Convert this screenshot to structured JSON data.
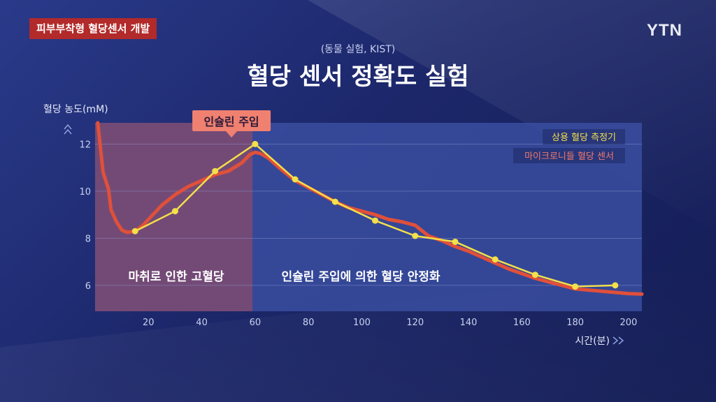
{
  "header": {
    "tag": "피부부착형 혈당센서 개발",
    "logo": "YTN",
    "subtitle": "(동물 실험, KIST)",
    "title": "혈당 센서 정확도 실험"
  },
  "colors": {
    "yellow": "#f3e04a",
    "red": "#e0503a",
    "shade_pink": "#7a4a72",
    "plot_bg": "#3a4ea0"
  },
  "chart_data": {
    "type": "line",
    "ylabel": "혈당 농도(mM)",
    "xlabel": "시간(분)",
    "xlim": [
      0,
      205
    ],
    "ylim": [
      4.9,
      12.9
    ],
    "xticks": [
      20,
      40,
      60,
      80,
      100,
      120,
      140,
      160,
      180,
      200
    ],
    "yticks": [
      6,
      8,
      10,
      12
    ],
    "grid": true,
    "legend_position": "top-right",
    "annotations": {
      "injection_label": "인슐린 주입",
      "injection_x": 59,
      "region_left_label": "마취로 인한 고혈당",
      "region_right_label": "인슐린 주입에 의한 혈당 안정화",
      "shaded_region": [
        0,
        59
      ]
    },
    "series": [
      {
        "name": "상용 혈당 측정기",
        "color": "#f3e04a",
        "markers": true,
        "x": [
          15,
          30,
          45,
          60,
          75,
          90,
          105,
          120,
          135,
          150,
          165,
          180,
          195
        ],
        "values": [
          8.3,
          9.15,
          10.85,
          12.0,
          10.5,
          9.55,
          8.75,
          8.1,
          7.85,
          7.1,
          6.45,
          5.95,
          6.0
        ]
      },
      {
        "name": "마이크로니들 혈당 센서",
        "color": "#e0503a",
        "markers": false,
        "x": [
          1,
          3,
          5,
          6,
          8,
          10,
          12,
          15,
          18,
          20,
          25,
          30,
          35,
          40,
          45,
          50,
          55,
          58,
          60,
          62,
          65,
          70,
          75,
          80,
          85,
          90,
          95,
          100,
          105,
          110,
          115,
          120,
          125,
          130,
          135,
          140,
          145,
          150,
          155,
          160,
          165,
          170,
          175,
          180,
          185,
          190,
          195,
          200,
          205
        ],
        "values": [
          12.9,
          10.8,
          10.1,
          9.2,
          8.7,
          8.35,
          8.25,
          8.3,
          8.55,
          8.8,
          9.4,
          9.85,
          10.2,
          10.45,
          10.7,
          10.85,
          11.2,
          11.55,
          11.65,
          11.6,
          11.4,
          10.9,
          10.45,
          10.15,
          9.85,
          9.55,
          9.3,
          9.15,
          9.0,
          8.8,
          8.7,
          8.55,
          8.1,
          7.9,
          7.65,
          7.45,
          7.2,
          6.95,
          6.7,
          6.5,
          6.3,
          6.15,
          6.0,
          5.85,
          5.8,
          5.75,
          5.7,
          5.65,
          5.63
        ]
      }
    ]
  }
}
